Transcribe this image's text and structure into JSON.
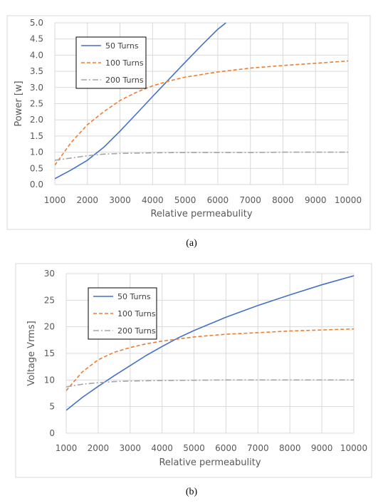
{
  "chart_data": [
    {
      "type": "line",
      "xlabel": "Relative permeabulity",
      "ylabel": "Power [w]",
      "xlim": [
        1000,
        10000
      ],
      "ylim": [
        0,
        5
      ],
      "xticks": [
        "1000",
        "2000",
        "3000",
        "4000",
        "5000",
        "6000",
        "7000",
        "8000",
        "9000",
        "10000"
      ],
      "yticks": [
        "0.0",
        "0.5",
        "1.0",
        "1.5",
        "2.0",
        "2.5",
        "3.0",
        "3.5",
        "4.0",
        "4.5",
        "5.0"
      ],
      "caption": "(a)",
      "legend_position": "top-left",
      "grid": true,
      "series": [
        {
          "name": "50 Turns",
          "color": "#4472c4",
          "dash": "solid",
          "x": [
            1000,
            1500,
            2000,
            2500,
            3000,
            3500,
            4000,
            4500,
            5000,
            5500,
            6000,
            6250
          ],
          "y": [
            0.18,
            0.45,
            0.75,
            1.15,
            1.65,
            2.18,
            2.72,
            3.25,
            3.78,
            4.3,
            4.8,
            5.0
          ]
        },
        {
          "name": "100 Turns",
          "color": "#ed7d31",
          "dash": "dashed",
          "x": [
            1000,
            1500,
            2000,
            2500,
            3000,
            3500,
            4000,
            4500,
            5000,
            6000,
            7000,
            8000,
            9000,
            10000
          ],
          "y": [
            0.6,
            1.3,
            1.85,
            2.25,
            2.6,
            2.85,
            3.05,
            3.2,
            3.32,
            3.48,
            3.6,
            3.68,
            3.75,
            3.82
          ]
        },
        {
          "name": "200 Turns",
          "color": "#a5a5a5",
          "dash": "dashdot",
          "x": [
            1000,
            1500,
            2000,
            2500,
            3000,
            4000,
            5000,
            6000,
            7000,
            8000,
            9000,
            10000
          ],
          "y": [
            0.75,
            0.82,
            0.89,
            0.94,
            0.96,
            0.98,
            0.99,
            0.99,
            0.99,
            1.0,
            1.0,
            1.0
          ]
        }
      ]
    },
    {
      "type": "line",
      "xlabel": "Relative permeabulity",
      "ylabel": "Voltage Vrms]",
      "xlim": [
        1000,
        10000
      ],
      "ylim": [
        0,
        30
      ],
      "xticks": [
        "1000",
        "2000",
        "3000",
        "4000",
        "5000",
        "6000",
        "7000",
        "8000",
        "9000",
        "10000"
      ],
      "yticks": [
        "0",
        "5",
        "10",
        "15",
        "20",
        "25",
        "30"
      ],
      "caption": "(b)",
      "legend_position": "top-left",
      "grid": true,
      "series": [
        {
          "name": "50 Turns",
          "color": "#4472c4",
          "dash": "solid",
          "x": [
            1000,
            1500,
            2000,
            2500,
            3000,
            3500,
            4000,
            4500,
            5000,
            6000,
            7000,
            8000,
            9000,
            10000
          ],
          "y": [
            4.3,
            6.7,
            8.8,
            10.8,
            12.7,
            14.6,
            16.3,
            17.9,
            19.3,
            21.8,
            24.0,
            26.0,
            27.9,
            29.6
          ]
        },
        {
          "name": "100 Turns",
          "color": "#ed7d31",
          "dash": "dashed",
          "x": [
            1000,
            1500,
            2000,
            2500,
            3000,
            3500,
            4000,
            4500,
            5000,
            6000,
            7000,
            8000,
            9000,
            10000
          ],
          "y": [
            8.0,
            11.5,
            13.8,
            15.2,
            16.1,
            16.8,
            17.3,
            17.7,
            18.1,
            18.6,
            18.9,
            19.2,
            19.4,
            19.6
          ]
        },
        {
          "name": "200 Turns",
          "color": "#a5a5a5",
          "dash": "dashdot",
          "x": [
            1000,
            1500,
            2000,
            2500,
            3000,
            4000,
            5000,
            6000,
            7000,
            8000,
            9000,
            10000
          ],
          "y": [
            8.7,
            9.2,
            9.5,
            9.7,
            9.8,
            9.9,
            9.95,
            10.0,
            10.0,
            10.0,
            10.0,
            10.0
          ]
        }
      ]
    }
  ]
}
